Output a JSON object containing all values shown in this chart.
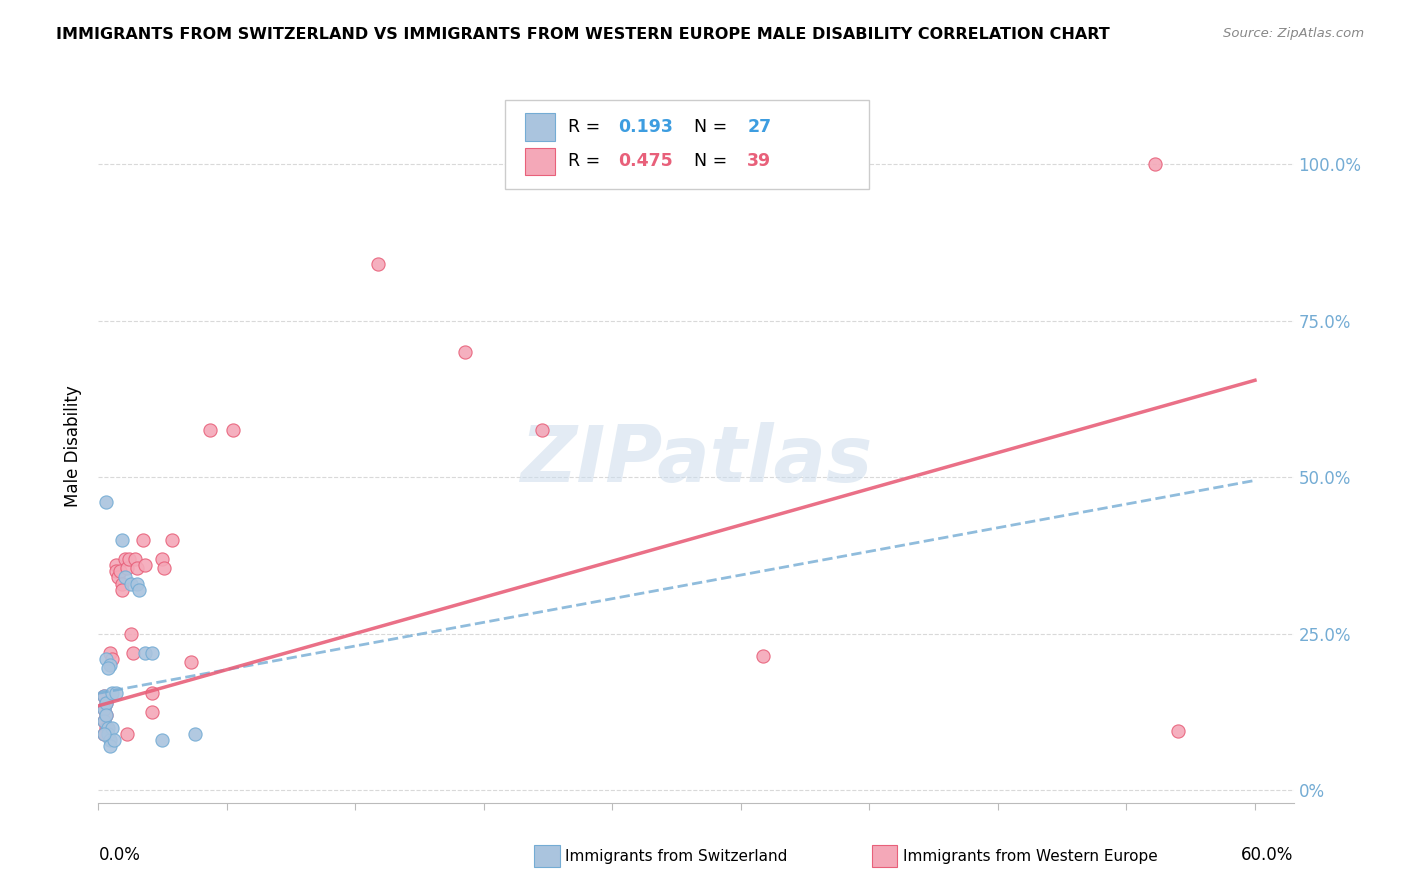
{
  "title": "IMMIGRANTS FROM SWITZERLAND VS IMMIGRANTS FROM WESTERN EUROPE MALE DISABILITY CORRELATION CHART",
  "source": "Source: ZipAtlas.com",
  "ylabel": "Male Disability",
  "xlim": [
    0.0,
    0.62
  ],
  "ylim": [
    -0.02,
    1.12
  ],
  "ytick_vals": [
    0.0,
    0.25,
    0.5,
    0.75,
    1.0
  ],
  "ytick_right_labels": [
    "0%",
    "25.0%",
    "50.0%",
    "75.0%",
    "100.0%"
  ],
  "blue_color": "#aac4de",
  "pink_color": "#f4a8b8",
  "line_blue": "#74acd4",
  "line_pink": "#e8607a",
  "blue_scatter": [
    [
      0.004,
      0.46
    ],
    [
      0.012,
      0.4
    ],
    [
      0.014,
      0.34
    ],
    [
      0.017,
      0.33
    ],
    [
      0.02,
      0.33
    ],
    [
      0.021,
      0.32
    ],
    [
      0.004,
      0.21
    ],
    [
      0.006,
      0.2
    ],
    [
      0.003,
      0.15
    ],
    [
      0.003,
      0.13
    ],
    [
      0.003,
      0.11
    ],
    [
      0.004,
      0.14
    ],
    [
      0.004,
      0.12
    ],
    [
      0.005,
      0.1
    ],
    [
      0.005,
      0.09
    ],
    [
      0.006,
      0.08
    ],
    [
      0.007,
      0.1
    ],
    [
      0.006,
      0.07
    ],
    [
      0.008,
      0.08
    ],
    [
      0.024,
      0.22
    ],
    [
      0.028,
      0.22
    ],
    [
      0.033,
      0.08
    ],
    [
      0.05,
      0.09
    ],
    [
      0.007,
      0.155
    ],
    [
      0.005,
      0.195
    ],
    [
      0.009,
      0.155
    ],
    [
      0.003,
      0.09
    ]
  ],
  "pink_scatter": [
    [
      0.003,
      0.15
    ],
    [
      0.003,
      0.13
    ],
    [
      0.003,
      0.11
    ],
    [
      0.004,
      0.14
    ],
    [
      0.004,
      0.12
    ],
    [
      0.004,
      0.1
    ],
    [
      0.006,
      0.22
    ],
    [
      0.007,
      0.21
    ],
    [
      0.009,
      0.36
    ],
    [
      0.009,
      0.35
    ],
    [
      0.01,
      0.34
    ],
    [
      0.011,
      0.35
    ],
    [
      0.012,
      0.33
    ],
    [
      0.012,
      0.32
    ],
    [
      0.014,
      0.37
    ],
    [
      0.015,
      0.355
    ],
    [
      0.016,
      0.37
    ],
    [
      0.017,
      0.25
    ],
    [
      0.018,
      0.22
    ],
    [
      0.019,
      0.37
    ],
    [
      0.02,
      0.355
    ],
    [
      0.023,
      0.4
    ],
    [
      0.024,
      0.36
    ],
    [
      0.028,
      0.155
    ],
    [
      0.028,
      0.125
    ],
    [
      0.033,
      0.37
    ],
    [
      0.034,
      0.355
    ],
    [
      0.038,
      0.4
    ],
    [
      0.048,
      0.205
    ],
    [
      0.058,
      0.575
    ],
    [
      0.07,
      0.575
    ],
    [
      0.145,
      0.84
    ],
    [
      0.19,
      0.7
    ],
    [
      0.23,
      0.575
    ],
    [
      0.345,
      0.215
    ],
    [
      0.548,
      1.0
    ],
    [
      0.56,
      0.095
    ],
    [
      0.003,
      0.09
    ],
    [
      0.015,
      0.09
    ]
  ],
  "blue_line": [
    [
      0.0,
      0.155
    ],
    [
      0.6,
      0.495
    ]
  ],
  "pink_line": [
    [
      0.0,
      0.135
    ],
    [
      0.6,
      0.655
    ]
  ]
}
